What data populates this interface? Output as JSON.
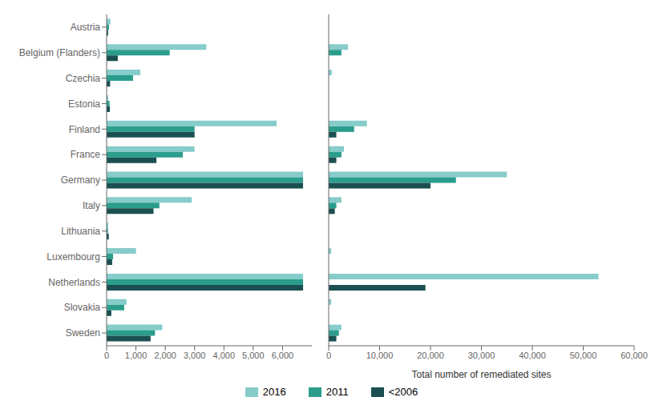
{
  "chart_data": [
    {
      "type": "bar",
      "orientation": "horizontal",
      "categories": [
        "Austria",
        "Belgium (Flanders)",
        "Czechia",
        "Estonia",
        "Finland",
        "France",
        "Germany",
        "Italy",
        "Lithuania",
        "Luxembourg",
        "Netherlands",
        "Slovakia",
        "Sweden"
      ],
      "series": [
        {
          "name": "2016",
          "color": "#86CCCA",
          "values": [
            130,
            3400,
            1150,
            55,
            5800,
            3000,
            6700,
            2900,
            55,
            1000,
            6700,
            680,
            1900
          ]
        },
        {
          "name": "2011",
          "color": "#2B9D8D",
          "values": [
            80,
            2150,
            900,
            100,
            3000,
            2600,
            6700,
            1800,
            45,
            220,
            6700,
            600,
            1650
          ]
        },
        {
          "name": "<2006",
          "color": "#1B4F50",
          "values": [
            50,
            380,
            120,
            110,
            3000,
            1700,
            6700,
            1600,
            75,
            190,
            6700,
            160,
            1500
          ]
        }
      ],
      "xlim": [
        0,
        7000
      ],
      "xticks": [
        0,
        {
          "value": 1000,
          "label": "1,000"
        },
        {
          "value": 2000,
          "label": "2,000"
        },
        {
          "value": 3000,
          "label": "3,000"
        },
        {
          "value": 4000,
          "label": "4,000"
        },
        {
          "value": 5000,
          "label": "5,000"
        },
        {
          "value": 6000,
          "label": "6,000"
        }
      ],
      "grid": false
    },
    {
      "type": "bar",
      "orientation": "horizontal",
      "xlabel": "Total number of remediated sites",
      "categories": [
        "Austria",
        "Belgium (Flanders)",
        "Czechia",
        "Estonia",
        "Finland",
        "France",
        "Germany",
        "Italy",
        "Lithuania",
        "Luxembourg",
        "Netherlands",
        "Slovakia",
        "Sweden"
      ],
      "series": [
        {
          "name": "2016",
          "color": "#86CCCA",
          "values": [
            0,
            3800,
            600,
            0,
            7500,
            3000,
            35000,
            2500,
            0,
            500,
            53000,
            500,
            2500
          ]
        },
        {
          "name": "2011",
          "color": "#2B9D8D",
          "values": [
            0,
            2500,
            0,
            0,
            5000,
            2500,
            25000,
            1500,
            0,
            0,
            0,
            0,
            2000
          ]
        },
        {
          "name": "<2006",
          "color": "#1B4F50",
          "values": [
            0,
            0,
            0,
            0,
            1500,
            1500,
            20000,
            1200,
            0,
            0,
            19000,
            0,
            1500
          ]
        }
      ],
      "xlim": [
        0,
        60000
      ],
      "xticks": [
        0,
        {
          "value": 10000,
          "label": "10,000"
        },
        {
          "value": 20000,
          "label": "20,000"
        },
        {
          "value": 30000,
          "label": "30,000"
        },
        {
          "value": 40000,
          "label": "40,000"
        },
        {
          "value": 50000,
          "label": "50,000"
        },
        {
          "value": 60000,
          "label": "60,000"
        }
      ],
      "grid": false,
      "tick_labels": "x"
    }
  ]
}
